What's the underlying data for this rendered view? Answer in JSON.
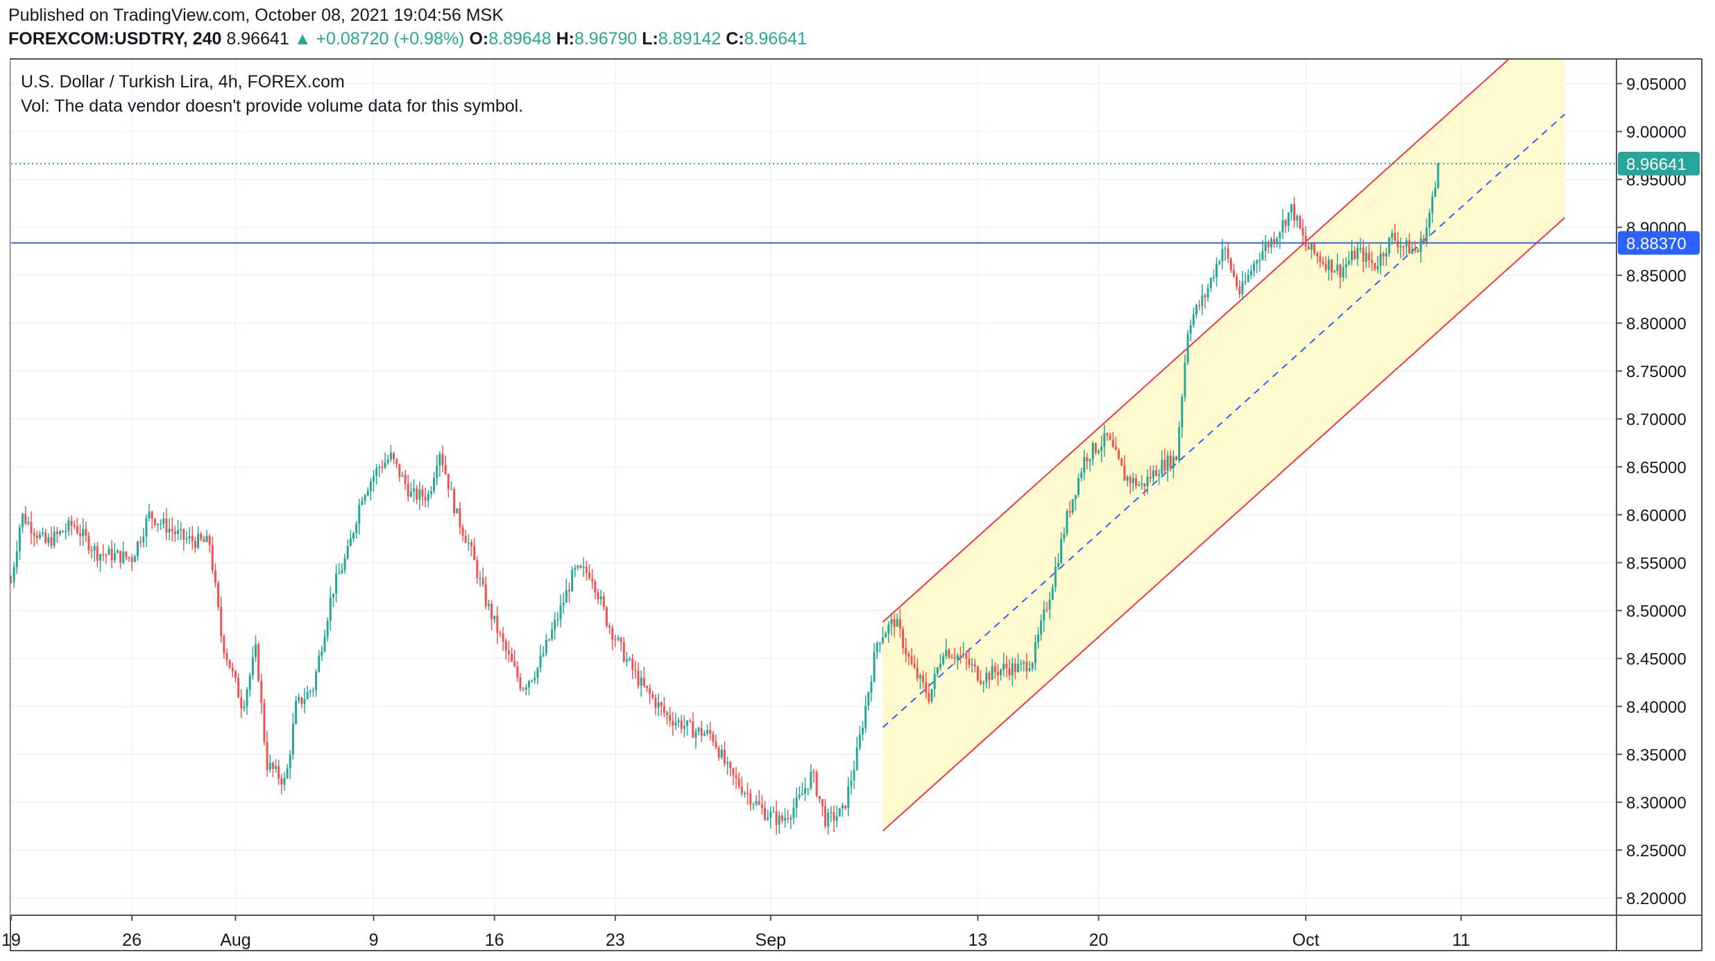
{
  "header": {
    "published": "Published on TradingView.com, October 08, 2021 19:04:56 MSK",
    "symbol": "FOREXCOM:USDTRY, 240",
    "last": "8.96641",
    "change": "▲ +0.08720 (+0.98%)",
    "open_label": "O:",
    "open": "8.89648",
    "high_label": "H:",
    "high": "8.96790",
    "low_label": "L:",
    "low": "8.89142",
    "close_label": "C:",
    "close": "8.96641"
  },
  "legend": {
    "title": "U.S. Dollar / Turkish Lira, 4h, FOREX.com",
    "volume_note": "Vol: The data vendor doesn't provide volume data for this symbol."
  },
  "colors": {
    "up": "#26a69a",
    "down": "#ef5350",
    "channel": "#f23645",
    "channel_fill": "#fff9c4",
    "midline": "#2962ff",
    "hline": "#2962ff",
    "last_price": "#26a69a",
    "grid": "#f0f3fa"
  },
  "chart_data": {
    "type": "candlestick",
    "title": "U.S. Dollar / Turkish Lira, 4h, FOREX.com",
    "xlabel": "",
    "ylabel": "",
    "y_ticks": [
      "8.20000",
      "8.25000",
      "8.30000",
      "8.35000",
      "8.40000",
      "8.45000",
      "8.50000",
      "8.55000",
      "8.60000",
      "8.65000",
      "8.70000",
      "8.75000",
      "8.80000",
      "8.85000",
      "8.90000",
      "8.95000",
      "9.00000",
      "9.05000"
    ],
    "y_tick_values": [
      8.2,
      8.25,
      8.3,
      8.35,
      8.4,
      8.45,
      8.5,
      8.55,
      8.6,
      8.65,
      8.7,
      8.75,
      8.8,
      8.85,
      8.9,
      8.95,
      9.0,
      9.05
    ],
    "ylim": [
      8.182,
      9.075
    ],
    "x_ticks": [
      {
        "label": "19",
        "day": 0
      },
      {
        "label": "26",
        "day": 7
      },
      {
        "label": "Aug",
        "day": 13
      },
      {
        "label": "9",
        "day": 21
      },
      {
        "label": "16",
        "day": 28
      },
      {
        "label": "23",
        "day": 35
      },
      {
        "label": "Sep",
        "day": 44
      },
      {
        "label": "13",
        "day": 56
      },
      {
        "label": "20",
        "day": 63
      },
      {
        "label": "Oct",
        "day": 75
      },
      {
        "label": "11",
        "day": 84
      }
    ],
    "xlim_days": [
      0,
      93
    ],
    "price_path": [
      {
        "day": 0,
        "price": 8.53
      },
      {
        "day": 0.6,
        "price": 8.6
      },
      {
        "day": 2,
        "price": 8.57
      },
      {
        "day": 3.6,
        "price": 8.59
      },
      {
        "day": 5,
        "price": 8.56
      },
      {
        "day": 7,
        "price": 8.555
      },
      {
        "day": 8,
        "price": 8.6
      },
      {
        "day": 10,
        "price": 8.575
      },
      {
        "day": 11.5,
        "price": 8.57
      },
      {
        "day": 12.2,
        "price": 8.47
      },
      {
        "day": 13.4,
        "price": 8.4
      },
      {
        "day": 14.2,
        "price": 8.46
      },
      {
        "day": 14.8,
        "price": 8.34
      },
      {
        "day": 15.9,
        "price": 8.32
      },
      {
        "day": 16.5,
        "price": 8.4
      },
      {
        "day": 17.5,
        "price": 8.42
      },
      {
        "day": 18.6,
        "price": 8.52
      },
      {
        "day": 19.5,
        "price": 8.56
      },
      {
        "day": 20.3,
        "price": 8.62
      },
      {
        "day": 21.3,
        "price": 8.65
      },
      {
        "day": 22,
        "price": 8.66
      },
      {
        "day": 23.2,
        "price": 8.62
      },
      {
        "day": 24.2,
        "price": 8.62
      },
      {
        "day": 24.8,
        "price": 8.67
      },
      {
        "day": 25.8,
        "price": 8.6
      },
      {
        "day": 26.5,
        "price": 8.57
      },
      {
        "day": 27.5,
        "price": 8.51
      },
      {
        "day": 28.6,
        "price": 8.46
      },
      {
        "day": 29.6,
        "price": 8.42
      },
      {
        "day": 30.5,
        "price": 8.44
      },
      {
        "day": 31.6,
        "price": 8.49
      },
      {
        "day": 32.6,
        "price": 8.54
      },
      {
        "day": 33.6,
        "price": 8.54
      },
      {
        "day": 34.5,
        "price": 8.49
      },
      {
        "day": 35.6,
        "price": 8.45
      },
      {
        "day": 36.6,
        "price": 8.42
      },
      {
        "day": 38,
        "price": 8.39
      },
      {
        "day": 39.5,
        "price": 8.375
      },
      {
        "day": 40.6,
        "price": 8.37
      },
      {
        "day": 41.6,
        "price": 8.33
      },
      {
        "day": 42.6,
        "price": 8.31
      },
      {
        "day": 43.6,
        "price": 8.29
      },
      {
        "day": 44.6,
        "price": 8.28
      },
      {
        "day": 45.6,
        "price": 8.3
      },
      {
        "day": 46.4,
        "price": 8.33
      },
      {
        "day": 47.2,
        "price": 8.28
      },
      {
        "day": 48.2,
        "price": 8.29
      },
      {
        "day": 49,
        "price": 8.35
      },
      {
        "day": 50.2,
        "price": 8.47
      },
      {
        "day": 51.2,
        "price": 8.49
      },
      {
        "day": 52.2,
        "price": 8.44
      },
      {
        "day": 53.2,
        "price": 8.41
      },
      {
        "day": 54,
        "price": 8.46
      },
      {
        "day": 55.2,
        "price": 8.45
      },
      {
        "day": 56.2,
        "price": 8.43
      },
      {
        "day": 57.5,
        "price": 8.44
      },
      {
        "day": 58.5,
        "price": 8.44
      },
      {
        "day": 59.2,
        "price": 8.45
      },
      {
        "day": 60.2,
        "price": 8.52
      },
      {
        "day": 61.2,
        "price": 8.6
      },
      {
        "day": 62.2,
        "price": 8.66
      },
      {
        "day": 63.5,
        "price": 8.68
      },
      {
        "day": 64.5,
        "price": 8.64
      },
      {
        "day": 65.5,
        "price": 8.63
      },
      {
        "day": 66.5,
        "price": 8.65
      },
      {
        "day": 67.5,
        "price": 8.66
      },
      {
        "day": 68.2,
        "price": 8.8
      },
      {
        "day": 69.2,
        "price": 8.83
      },
      {
        "day": 70.2,
        "price": 8.88
      },
      {
        "day": 71.2,
        "price": 8.83
      },
      {
        "day": 72.2,
        "price": 8.87
      },
      {
        "day": 73.2,
        "price": 8.89
      },
      {
        "day": 74.2,
        "price": 8.92
      },
      {
        "day": 75,
        "price": 8.88
      },
      {
        "day": 76,
        "price": 8.865
      },
      {
        "day": 77,
        "price": 8.855
      },
      {
        "day": 78,
        "price": 8.875
      },
      {
        "day": 79,
        "price": 8.86
      },
      {
        "day": 80,
        "price": 8.89
      },
      {
        "day": 80.7,
        "price": 8.88
      },
      {
        "day": 81.5,
        "price": 8.875
      },
      {
        "day": 82,
        "price": 8.9
      },
      {
        "day": 82.8,
        "price": 8.966
      }
    ],
    "channel": {
      "start_day": 50.5,
      "end_day": 90,
      "upper": [
        8.488,
        9.128
      ],
      "mid": [
        8.378,
        9.018
      ],
      "lower": [
        8.27,
        8.91
      ]
    },
    "horizontal_line": {
      "value": 8.8837,
      "label": "8.88370"
    },
    "last_price": {
      "value": 8.96641,
      "label": "8.96641"
    },
    "grid": true
  }
}
